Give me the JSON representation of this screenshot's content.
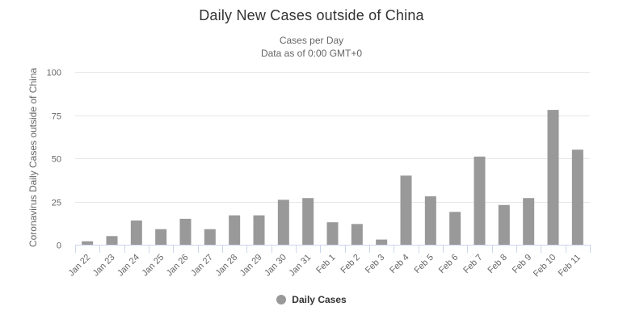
{
  "colors": {
    "bar": "#999999",
    "grid": "#e6e6e6",
    "axis": "#ccd6eb",
    "text": "#666666"
  },
  "chart_data": {
    "type": "bar",
    "title": "Daily New Cases outside of China",
    "subtitle": [
      "Cases per Day",
      "Data as of 0:00 GMT+0"
    ],
    "xlabel": "",
    "ylabel": "Coronavirus Daily Cases outside of China",
    "ylim": [
      0,
      100
    ],
    "yticks": [
      0,
      25,
      50,
      75,
      100
    ],
    "grid": true,
    "legend": "bottom",
    "categories": [
      "Jan 22",
      "Jan 23",
      "Jan 24",
      "Jan 25",
      "Jan 26",
      "Jan 27",
      "Jan 28",
      "Jan 29",
      "Jan 30",
      "Jan 31",
      "Feb 1",
      "Feb 2",
      "Feb 3",
      "Feb 4",
      "Feb 5",
      "Feb 6",
      "Feb 7",
      "Feb 8",
      "Feb 9",
      "Feb 10",
      "Feb 11"
    ],
    "series": [
      {
        "name": "Daily Cases",
        "values": [
          2,
          5,
          14,
          9,
          15,
          9,
          17,
          17,
          26,
          27,
          13,
          12,
          3,
          40,
          28,
          19,
          51,
          23,
          27,
          78,
          55
        ]
      }
    ]
  }
}
